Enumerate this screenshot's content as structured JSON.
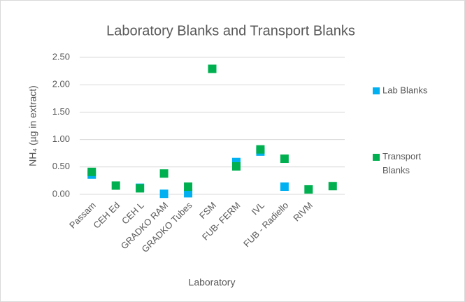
{
  "chart_data": {
    "type": "scatter",
    "title": "Laboratory Blanks and Transport Blanks",
    "x_label": "Laboratory",
    "y_label": "NH₄ (µg in extract)",
    "categories": [
      "Passam",
      "CEH Ed",
      "CEH L",
      "GRADKO RAM",
      "GRADKO Tubes",
      "FSM",
      "FUB- FERM",
      "IVL",
      "FUB - Radiello",
      "RIVM",
      null
    ],
    "series": [
      {
        "name": "Lab Blanks",
        "color": "#00b0f0",
        "values": [
          0.36,
          null,
          0.12,
          0.01,
          0.02,
          null,
          0.59,
          0.78,
          0.14,
          null,
          null
        ]
      },
      {
        "name": "Transport Blanks",
        "color": "#00b050",
        "values": [
          0.41,
          0.16,
          0.11,
          0.38,
          0.14,
          2.29,
          0.51,
          0.82,
          0.65,
          0.09,
          0.15
        ]
      }
    ],
    "ylim": [
      0,
      2.5
    ],
    "yticks": [
      {
        "value": 0,
        "label": "0.00"
      },
      {
        "value": 0.5,
        "label": "0.50"
      },
      {
        "value": 1,
        "label": "1.00"
      },
      {
        "value": 1.5,
        "label": "1.50"
      },
      {
        "value": 2,
        "label": "2.00"
      },
      {
        "value": 2.5,
        "label": "2.50"
      }
    ],
    "grid": true,
    "legend": "right"
  }
}
